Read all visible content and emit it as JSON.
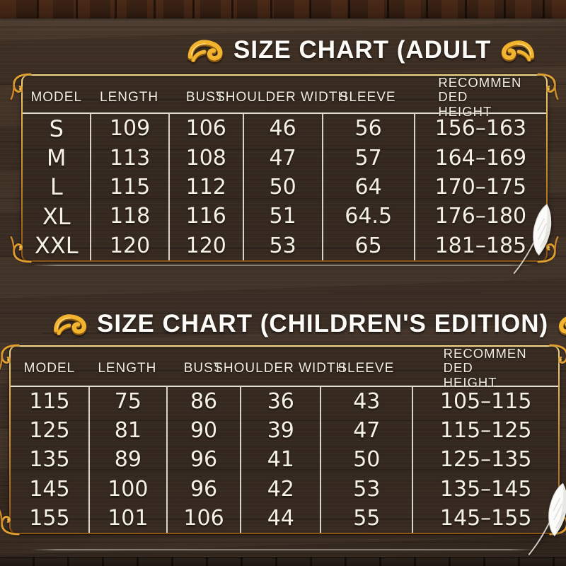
{
  "icons": {
    "title_flourish": "gold-double-leaf-swirl",
    "corner_flourish": "gold-corner-curl",
    "quill": "white-feather-quill"
  },
  "colors": {
    "gold_bright": "#f4ba33",
    "gold_dark": "#8c5514",
    "text": "#f5f1e7",
    "wood_background": "#3d2f25",
    "divider_line": "#f0ebdf",
    "underline_gray": "#c8c3b8"
  },
  "chart_data": [
    {
      "type": "table",
      "title": "SIZE CHART (ADULT",
      "columns": [
        "MODEL",
        "LENGTH",
        "BUST",
        "SHOULDER WIDTH",
        "SLEEVE",
        "RECOMMEN DED HEIGHT"
      ],
      "rows": [
        [
          "S",
          "109",
          "106",
          "46",
          "56",
          "156–163"
        ],
        [
          "M",
          "113",
          "108",
          "47",
          "57",
          "164–169"
        ],
        [
          "L",
          "115",
          "112",
          "50",
          "64",
          "170–175"
        ],
        [
          "XL",
          "118",
          "116",
          "51",
          "64.5",
          "176–180"
        ],
        [
          "XXL",
          "120",
          "120",
          "53",
          "65",
          "181–185"
        ]
      ]
    },
    {
      "type": "table",
      "title": "SIZE CHART (CHILDREN'S EDITION)",
      "columns": [
        "MODEL",
        "LENGTH",
        "BUST",
        "SHOULDER WIDTH",
        "SLEEVE",
        "RECOMMEN DED HEIGHT"
      ],
      "rows": [
        [
          "115",
          "75",
          "86",
          "36",
          "43",
          "105–115"
        ],
        [
          "125",
          "81",
          "90",
          "39",
          "47",
          "115–125"
        ],
        [
          "135",
          "89",
          "96",
          "41",
          "50",
          "125–135"
        ],
        [
          "145",
          "100",
          "96",
          "42",
          "53",
          "135–145"
        ],
        [
          "155",
          "101",
          "106",
          "44",
          "55",
          "145–155"
        ]
      ]
    }
  ]
}
